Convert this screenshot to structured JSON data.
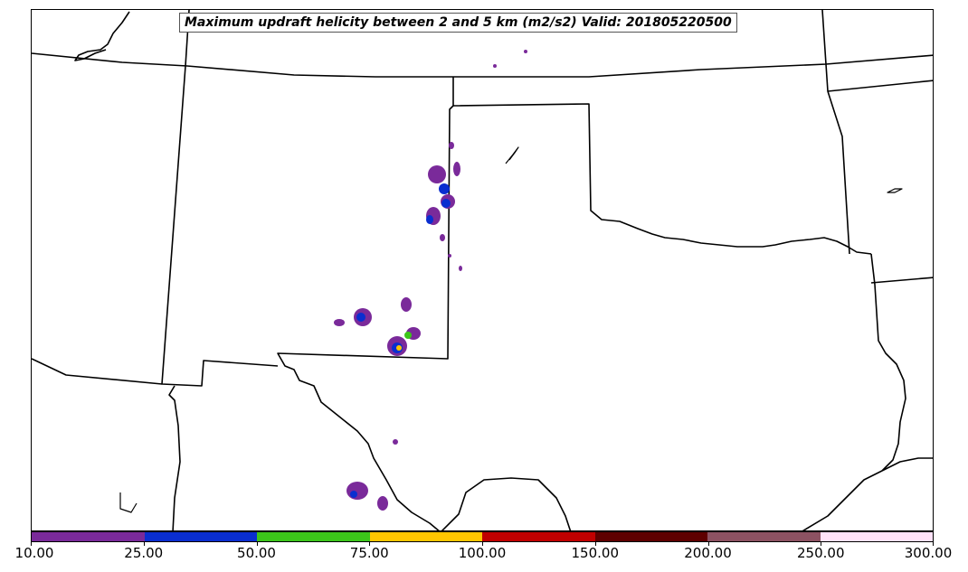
{
  "title": "Maximum updraft helicity between 2 and 5 km (m2/s2) Valid: 201805220500",
  "map": {
    "boundary_color": "#000000"
  },
  "colorbar": {
    "colors": [
      "#7a2a9a",
      "#0a2ed0",
      "#3cc61a",
      "#ffc600",
      "#c00000",
      "#5e0000",
      "#8c5262",
      "#ffe2f8"
    ],
    "labels": [
      "10.00",
      "25.00",
      "50.00",
      "75.00",
      "100.00",
      "150.00",
      "200.00",
      "250.00",
      "300.00"
    ]
  }
}
